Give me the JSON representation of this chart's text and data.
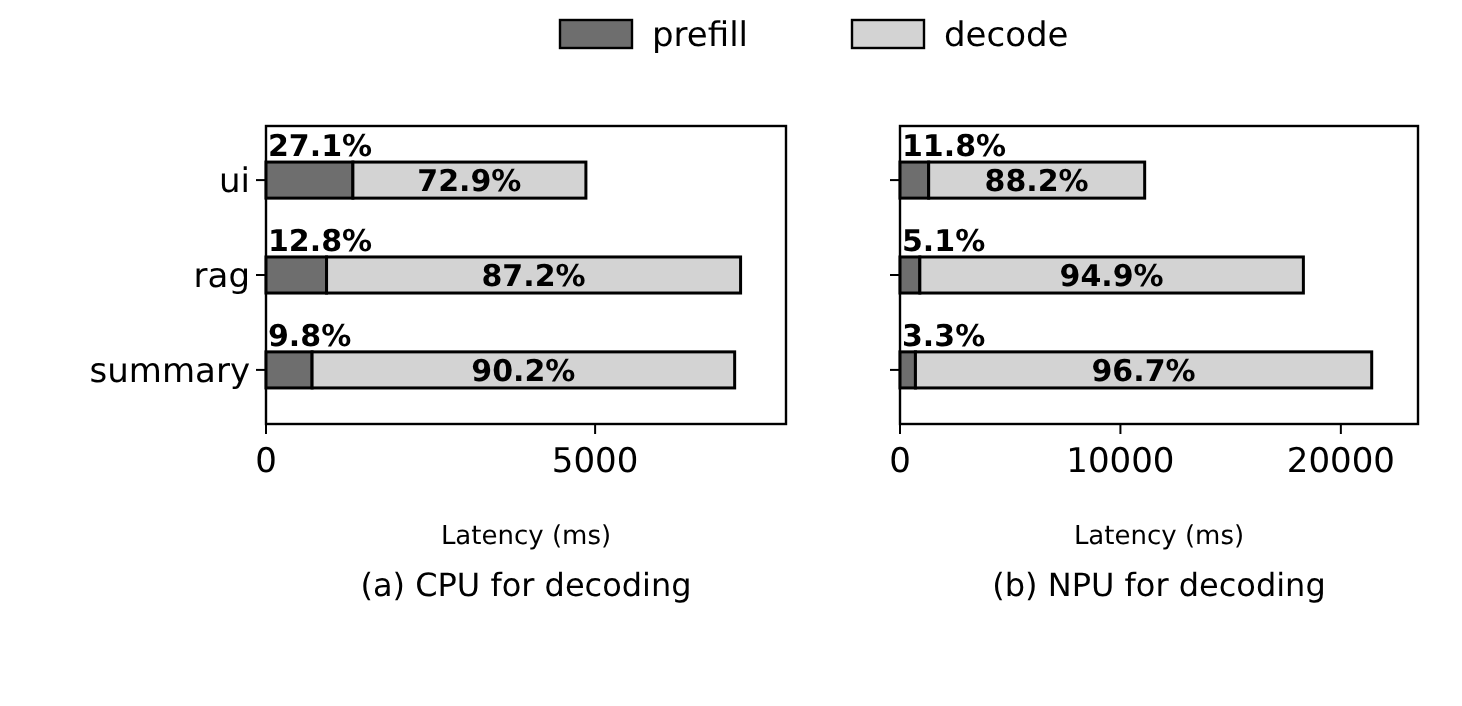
{
  "chart_data": [
    {
      "type": "bar",
      "orientation": "horizontal",
      "stacked": true,
      "title": "(a) CPU for decoding",
      "xlabel": "Latency (ms)",
      "categories": [
        "ui",
        "rag",
        "summary"
      ],
      "xlim": [
        0,
        7900
      ],
      "xticks": [
        0,
        5000
      ],
      "legend": "top",
      "series": [
        {
          "name": "prefill",
          "color": "#6e6e6e",
          "values": [
            1320,
            920,
            700
          ]
        },
        {
          "name": "decode",
          "color": "#d3d3d3",
          "values": [
            3540,
            6290,
            6420
          ]
        }
      ],
      "annotations": [
        "27.1%",
        "72.9%",
        "12.8%",
        "87.2%",
        "9.8%",
        "90.2%"
      ]
    },
    {
      "type": "bar",
      "orientation": "horizontal",
      "stacked": true,
      "title": "(b) NPU for decoding",
      "xlabel": "Latency (ms)",
      "categories": [
        null,
        null,
        null
      ],
      "xlim": [
        0,
        23500
      ],
      "xticks": [
        0,
        10000,
        20000
      ],
      "series": [
        {
          "color": "#6e6e6e",
          "values": [
            1300,
            900,
            700
          ]
        },
        {
          "color": "#d3d3d3",
          "values": [
            9800,
            17400,
            20700
          ]
        }
      ],
      "annotations": [
        "11.8%",
        "88.2%",
        "5.1%",
        "94.9%",
        "3.3%",
        "96.7%"
      ]
    }
  ]
}
